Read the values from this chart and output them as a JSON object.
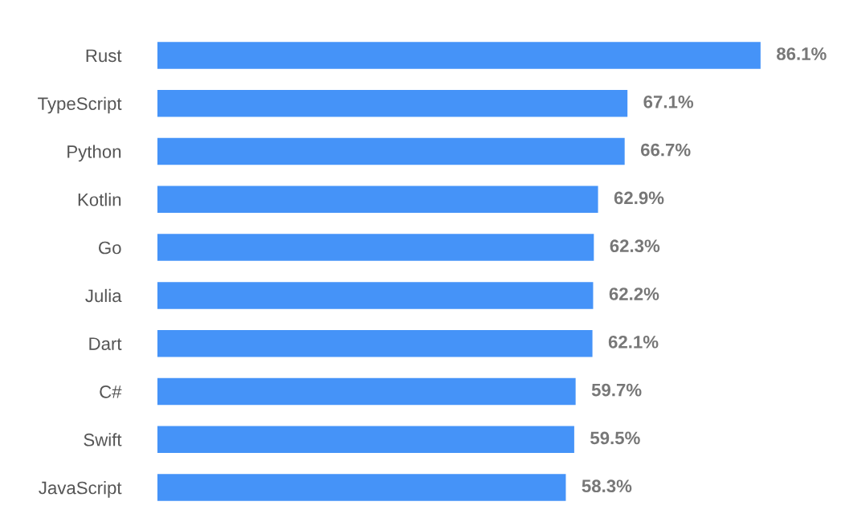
{
  "chart_data": {
    "type": "bar",
    "orientation": "horizontal",
    "categories": [
      "Rust",
      "TypeScript",
      "Python",
      "Kotlin",
      "Go",
      "Julia",
      "Dart",
      "C#",
      "Swift",
      "JavaScript"
    ],
    "values": [
      86.1,
      67.1,
      66.7,
      62.9,
      62.3,
      62.2,
      62.1,
      59.7,
      59.5,
      58.3
    ],
    "value_labels": [
      "86.1%",
      "67.1%",
      "66.7%",
      "62.9%",
      "62.3%",
      "62.2%",
      "62.1%",
      "59.7%",
      "59.5%",
      "58.3%"
    ],
    "color": "#4593f8",
    "grid": false,
    "legend": false
  }
}
